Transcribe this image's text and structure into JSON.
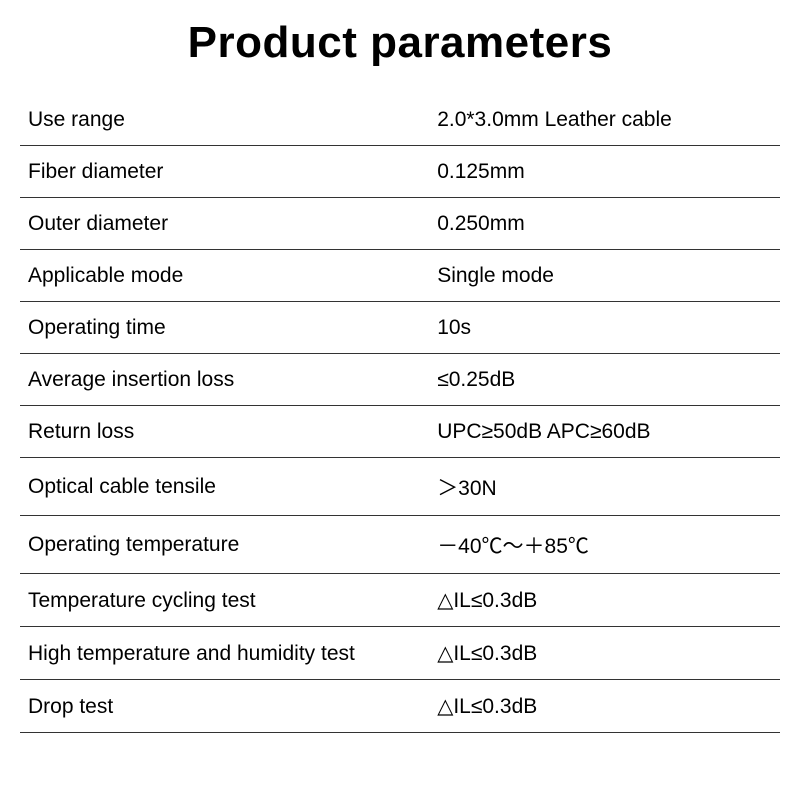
{
  "title": "Product parameters",
  "rows": [
    {
      "label": "Use range",
      "value": "2.0*3.0mm Leather cable"
    },
    {
      "label": "Fiber diameter",
      "value": "0.125mm"
    },
    {
      "label": "Outer diameter",
      "value": "0.250mm"
    },
    {
      "label": "Applicable mode",
      "value": "Single mode"
    },
    {
      "label": "Operating time",
      "value": "10s"
    },
    {
      "label": "Average insertion loss",
      "value": "≤0.25dB"
    },
    {
      "label": "Return loss",
      "value": "UPC≥50dB APC≥60dB"
    },
    {
      "label": "Optical cable tensile",
      "value": "＞30N"
    },
    {
      "label": "Operating temperature",
      "value": "－40℃～＋85℃"
    },
    {
      "label": "Temperature cycling test",
      "value": "△IL≤0.3dB"
    },
    {
      "label": "High temperature and humidity test",
      "value": "△IL≤0.3dB"
    },
    {
      "label": "Drop test",
      "value": "△IL≤0.3dB"
    }
  ],
  "styling": {
    "title_fontsize": 44,
    "title_weight": "bold",
    "row_fontsize": 21,
    "border_color": "#333333",
    "text_color": "#000000",
    "background_color": "#ffffff",
    "label_column_width_pct": 55
  }
}
